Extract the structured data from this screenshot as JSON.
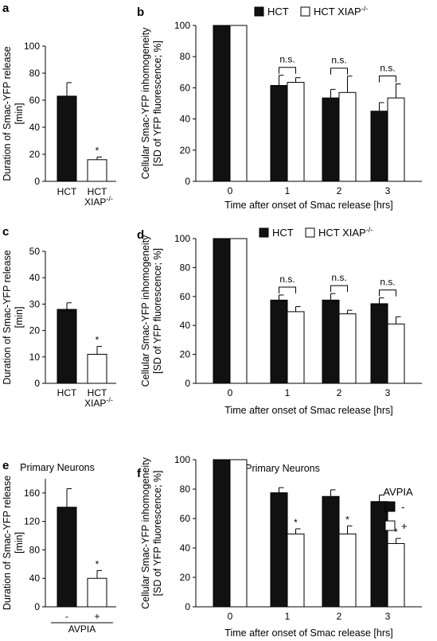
{
  "chart_data": [
    {
      "panel": "a",
      "type": "bar",
      "categories": [
        "HCT",
        "HCT XIAP-/-"
      ],
      "category_lines": [
        [
          "HCT"
        ],
        [
          "HCT",
          "XIAP",
          "-/-"
        ]
      ],
      "values": [
        63,
        16
      ],
      "errors": [
        10,
        2
      ],
      "fills": [
        "#111111",
        "#ffffff"
      ],
      "significance": [
        "",
        "*"
      ],
      "ylabel": [
        "Duration of Smac-YFP release",
        "[min]"
      ],
      "ylim": [
        0,
        100
      ],
      "yticks": [
        "0",
        "20",
        "40",
        "60",
        "80",
        "100"
      ],
      "group_label": ""
    },
    {
      "panel": "b",
      "type": "bar",
      "categories": [
        "0",
        "1",
        "2",
        "3"
      ],
      "series": [
        {
          "name": "HCT",
          "values": [
            100,
            61.5,
            53.5,
            45
          ],
          "errors": [
            0,
            6.5,
            5.5,
            5.5
          ],
          "fill": "#111111"
        },
        {
          "name": "HCT XIAP-/-",
          "values": [
            100,
            63.5,
            57,
            53.5
          ],
          "errors": [
            0,
            3,
            10.5,
            9
          ],
          "fill": "#ffffff"
        }
      ],
      "significance": [
        "",
        "n.s.",
        "n.s.",
        "n.s."
      ],
      "sig_style": "bracket",
      "legend_entries": [
        {
          "label": "HCT",
          "sup": "",
          "fill": "#111111"
        },
        {
          "label": "HCT XIAP",
          "sup": "-/-",
          "fill": "#ffffff"
        }
      ],
      "legend": "top",
      "xlabel": "Time after onset of Smac release [hrs]",
      "ylabel": [
        "Cellular Smac-YFP inhomogeneity",
        "[SD of YFP fluorescence; %]"
      ],
      "ylim": [
        0,
        100
      ],
      "yticks": [
        "0",
        "20",
        "40",
        "60",
        "80",
        "100"
      ]
    },
    {
      "panel": "c",
      "type": "bar",
      "categories": [
        "HCT",
        "HCT XIAP-/-"
      ],
      "category_lines": [
        [
          "HCT"
        ],
        [
          "HCT",
          "XIAP",
          "-/-"
        ]
      ],
      "values": [
        28,
        11
      ],
      "errors": [
        2.5,
        3
      ],
      "fills": [
        "#111111",
        "#ffffff"
      ],
      "significance": [
        "",
        "*"
      ],
      "ylabel": [
        "Duration of Smac-YFP release",
        "[min]"
      ],
      "ylim": [
        0,
        50
      ],
      "yticks": [
        "0",
        "10",
        "20",
        "30",
        "40",
        "50"
      ],
      "group_label": ""
    },
    {
      "panel": "d",
      "type": "bar",
      "categories": [
        "0",
        "1",
        "2",
        "3"
      ],
      "series": [
        {
          "name": "HCT",
          "values": [
            100,
            57.5,
            57.5,
            55
          ],
          "errors": [
            0,
            3.5,
            4.5,
            4
          ],
          "fill": "#111111"
        },
        {
          "name": "HCT XIAP-/-",
          "values": [
            100,
            49.5,
            48,
            41
          ],
          "errors": [
            0,
            3.5,
            2.5,
            5
          ],
          "fill": "#ffffff"
        }
      ],
      "significance": [
        "",
        "n.s.",
        "n.s.",
        "n.s."
      ],
      "sig_style": "bracket",
      "legend_entries": [
        {
          "label": "HCT",
          "sup": "",
          "fill": "#111111"
        },
        {
          "label": "HCT XIAP",
          "sup": "-/-",
          "fill": "#ffffff"
        }
      ],
      "legend": "top",
      "xlabel": "Time after onset of Smac release [hrs]",
      "ylabel": [
        "Cellular Smac-YFP inhomogeneity",
        "[SD of YFP fluorescence; %]"
      ],
      "ylim": [
        0,
        100
      ],
      "yticks": [
        "0",
        "20",
        "40",
        "60",
        "80",
        "100"
      ]
    },
    {
      "panel": "e",
      "title": "Primary Neurons",
      "type": "bar",
      "categories": [
        "-",
        "+"
      ],
      "category_lines": [
        [
          "-"
        ],
        [
          "+"
        ]
      ],
      "values": [
        140,
        40
      ],
      "errors": [
        26,
        11
      ],
      "fills": [
        "#111111",
        "#ffffff"
      ],
      "significance": [
        "",
        "*"
      ],
      "ylabel": [
        "Duration of Smac-YFP release",
        "[min]"
      ],
      "ylim": [
        0,
        180
      ],
      "yticks": [
        "0",
        "40",
        "80",
        "120",
        "160"
      ],
      "group_label": "AVPIA"
    },
    {
      "panel": "f",
      "title": "Primary Neurons",
      "type": "bar",
      "categories": [
        "0",
        "1",
        "2",
        "3"
      ],
      "series": [
        {
          "name": "-",
          "values": [
            100,
            77.5,
            75,
            71.5
          ],
          "errors": [
            0,
            3.5,
            4.5,
            4.5
          ],
          "fill": "#111111"
        },
        {
          "name": "+",
          "values": [
            100,
            49.5,
            49.5,
            43
          ],
          "errors": [
            0,
            3.5,
            5.5,
            3.5
          ],
          "fill": "#ffffff"
        }
      ],
      "significance": [
        "",
        "*",
        "*",
        "*"
      ],
      "sig_style": "star",
      "legend_title": "AVPIA",
      "legend_entries": [
        {
          "label": "-",
          "sup": "",
          "fill": "#111111"
        },
        {
          "label": "+",
          "sup": "",
          "fill": "#ffffff"
        }
      ],
      "legend": "right",
      "xlabel": "Time after onset of Smac release [hrs]",
      "ylabel": [
        "Cellular Smac-YFP inhomogeneity",
        "[SD of YFP fluorescence; %]"
      ],
      "ylim": [
        0,
        100
      ],
      "yticks": [
        "0",
        "20",
        "40",
        "60",
        "80",
        "100"
      ]
    }
  ]
}
